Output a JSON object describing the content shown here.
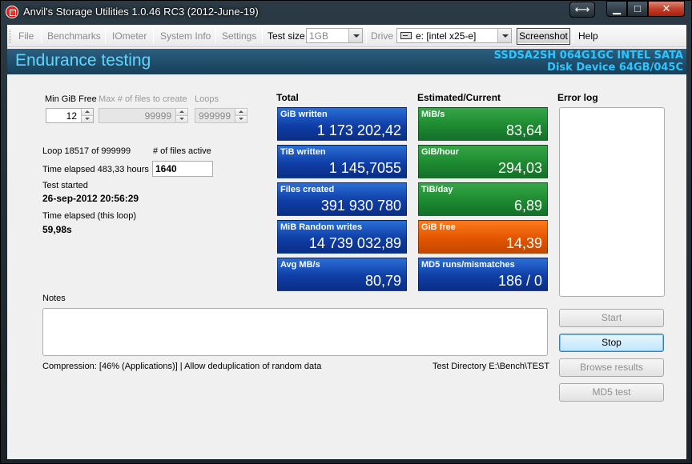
{
  "window": {
    "title": "Anvil's Storage Utilities 1.0.46 RC3 (2012-June-19)"
  },
  "menu": {
    "items": [
      "File",
      "Benchmarks",
      "IOmeter",
      "System Info",
      "Settings"
    ],
    "test_size_label": "Test size",
    "test_size_value": "1GB",
    "drive_label": "Drive",
    "drive_value": "e: [intel x25-e]",
    "screenshot_label": "Screenshot",
    "help_label": "Help"
  },
  "header": {
    "title": "Endurance testing",
    "device_line1": "SSDSA2SH 064G1GC INTEL SATA",
    "device_line2": "Disk Device 64GB/045C"
  },
  "settings": {
    "min_gib_free_label": "Min GiB Free",
    "min_gib_free_value": "12",
    "max_files_label": "Max # of files to create",
    "max_files_value": "99999",
    "loops_label": "Loops",
    "loops_value": "999999"
  },
  "status": {
    "loop_text": "Loop 18517 of 999999",
    "files_active_label": "# of files active",
    "time_elapsed_text": "Time elapsed 483,33 hours",
    "files_active_value": "1640",
    "test_started_label": "Test started",
    "test_started_value": "26-sep-2012 20:56:29",
    "loop_elapsed_label": "Time elapsed (this loop)",
    "loop_elapsed_value": "59,98s"
  },
  "total": {
    "heading": "Total",
    "tiles": [
      {
        "title": "GiB written",
        "value": "1 173 202,42"
      },
      {
        "title": "TiB written",
        "value": "1 145,7055"
      },
      {
        "title": "Files created",
        "value": "391 930 780"
      },
      {
        "title": "MiB Random writes",
        "value": "14 739 032,89"
      },
      {
        "title": "Avg MB/s",
        "value": "80,79"
      }
    ]
  },
  "estimated": {
    "heading": "Estimated/Current",
    "tiles": [
      {
        "title": "MiB/s",
        "value": "83,64"
      },
      {
        "title": "GiB/hour",
        "value": "294,03"
      },
      {
        "title": "TiB/day",
        "value": "6,89"
      },
      {
        "title": "GiB free",
        "value": "14,39"
      },
      {
        "title": "MD5 runs/mismatches",
        "value": "186 / 0"
      }
    ]
  },
  "error_log": {
    "heading": "Error log"
  },
  "notes": {
    "label": "Notes"
  },
  "footer": {
    "compression": "Compression: [46% (Applications)] | Allow deduplication of random data",
    "test_directory": "Test Directory E:\\Bench\\TEST"
  },
  "buttons": {
    "start": "Start",
    "stop": "Stop",
    "browse": "Browse results",
    "md5": "MD5 test"
  },
  "colors": {
    "tile_blue": "#1a4fb8",
    "tile_green": "#218a32",
    "tile_orange": "#e35500",
    "header_text": "#5fd6ff"
  }
}
